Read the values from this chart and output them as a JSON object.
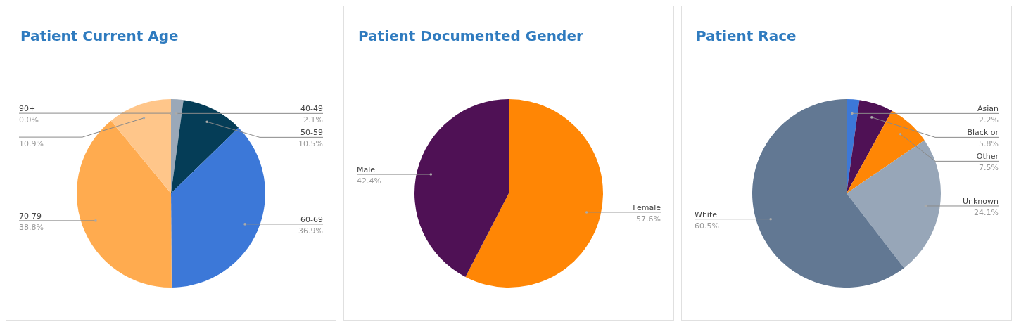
{
  "chart_data": [
    {
      "type": "pie",
      "title": "Patient Current Age",
      "categories": [
        "90+",
        "40-49",
        "50-59",
        "60-69",
        "70-79",
        null
      ],
      "values": [
        0.0,
        2.1,
        10.5,
        36.9,
        38.8,
        10.9
      ],
      "colors": [
        "#8b1a1a",
        "#9aa8b8",
        "#053d57",
        "#3c78d8",
        "#ffab4f",
        "#ffc68a"
      ],
      "value_labels": [
        "0.0%",
        "2.1%",
        "10.5%",
        "36.9%",
        "38.8%",
        "10.9%"
      ],
      "legend": false
    },
    {
      "type": "pie",
      "title": "Patient Documented Gender",
      "categories": [
        "Female",
        "Male"
      ],
      "values": [
        57.6,
        42.4
      ],
      "colors": [
        "#ff8605",
        "#4f1155"
      ],
      "value_labels": [
        "57.6%",
        "42.4%"
      ],
      "legend": false
    },
    {
      "type": "pie",
      "title": "Patient Race",
      "categories": [
        "Asian",
        "Black or",
        "Other",
        "Unknown",
        "White"
      ],
      "values": [
        2.2,
        5.8,
        7.5,
        24.1,
        60.5
      ],
      "colors": [
        "#3c78d8",
        "#4f1155",
        "#ff8605",
        "#97a6b8",
        "#627893"
      ],
      "value_labels": [
        "2.2%",
        "5.8%",
        "7.5%",
        "24.1%",
        "60.5%"
      ],
      "legend": false
    }
  ]
}
